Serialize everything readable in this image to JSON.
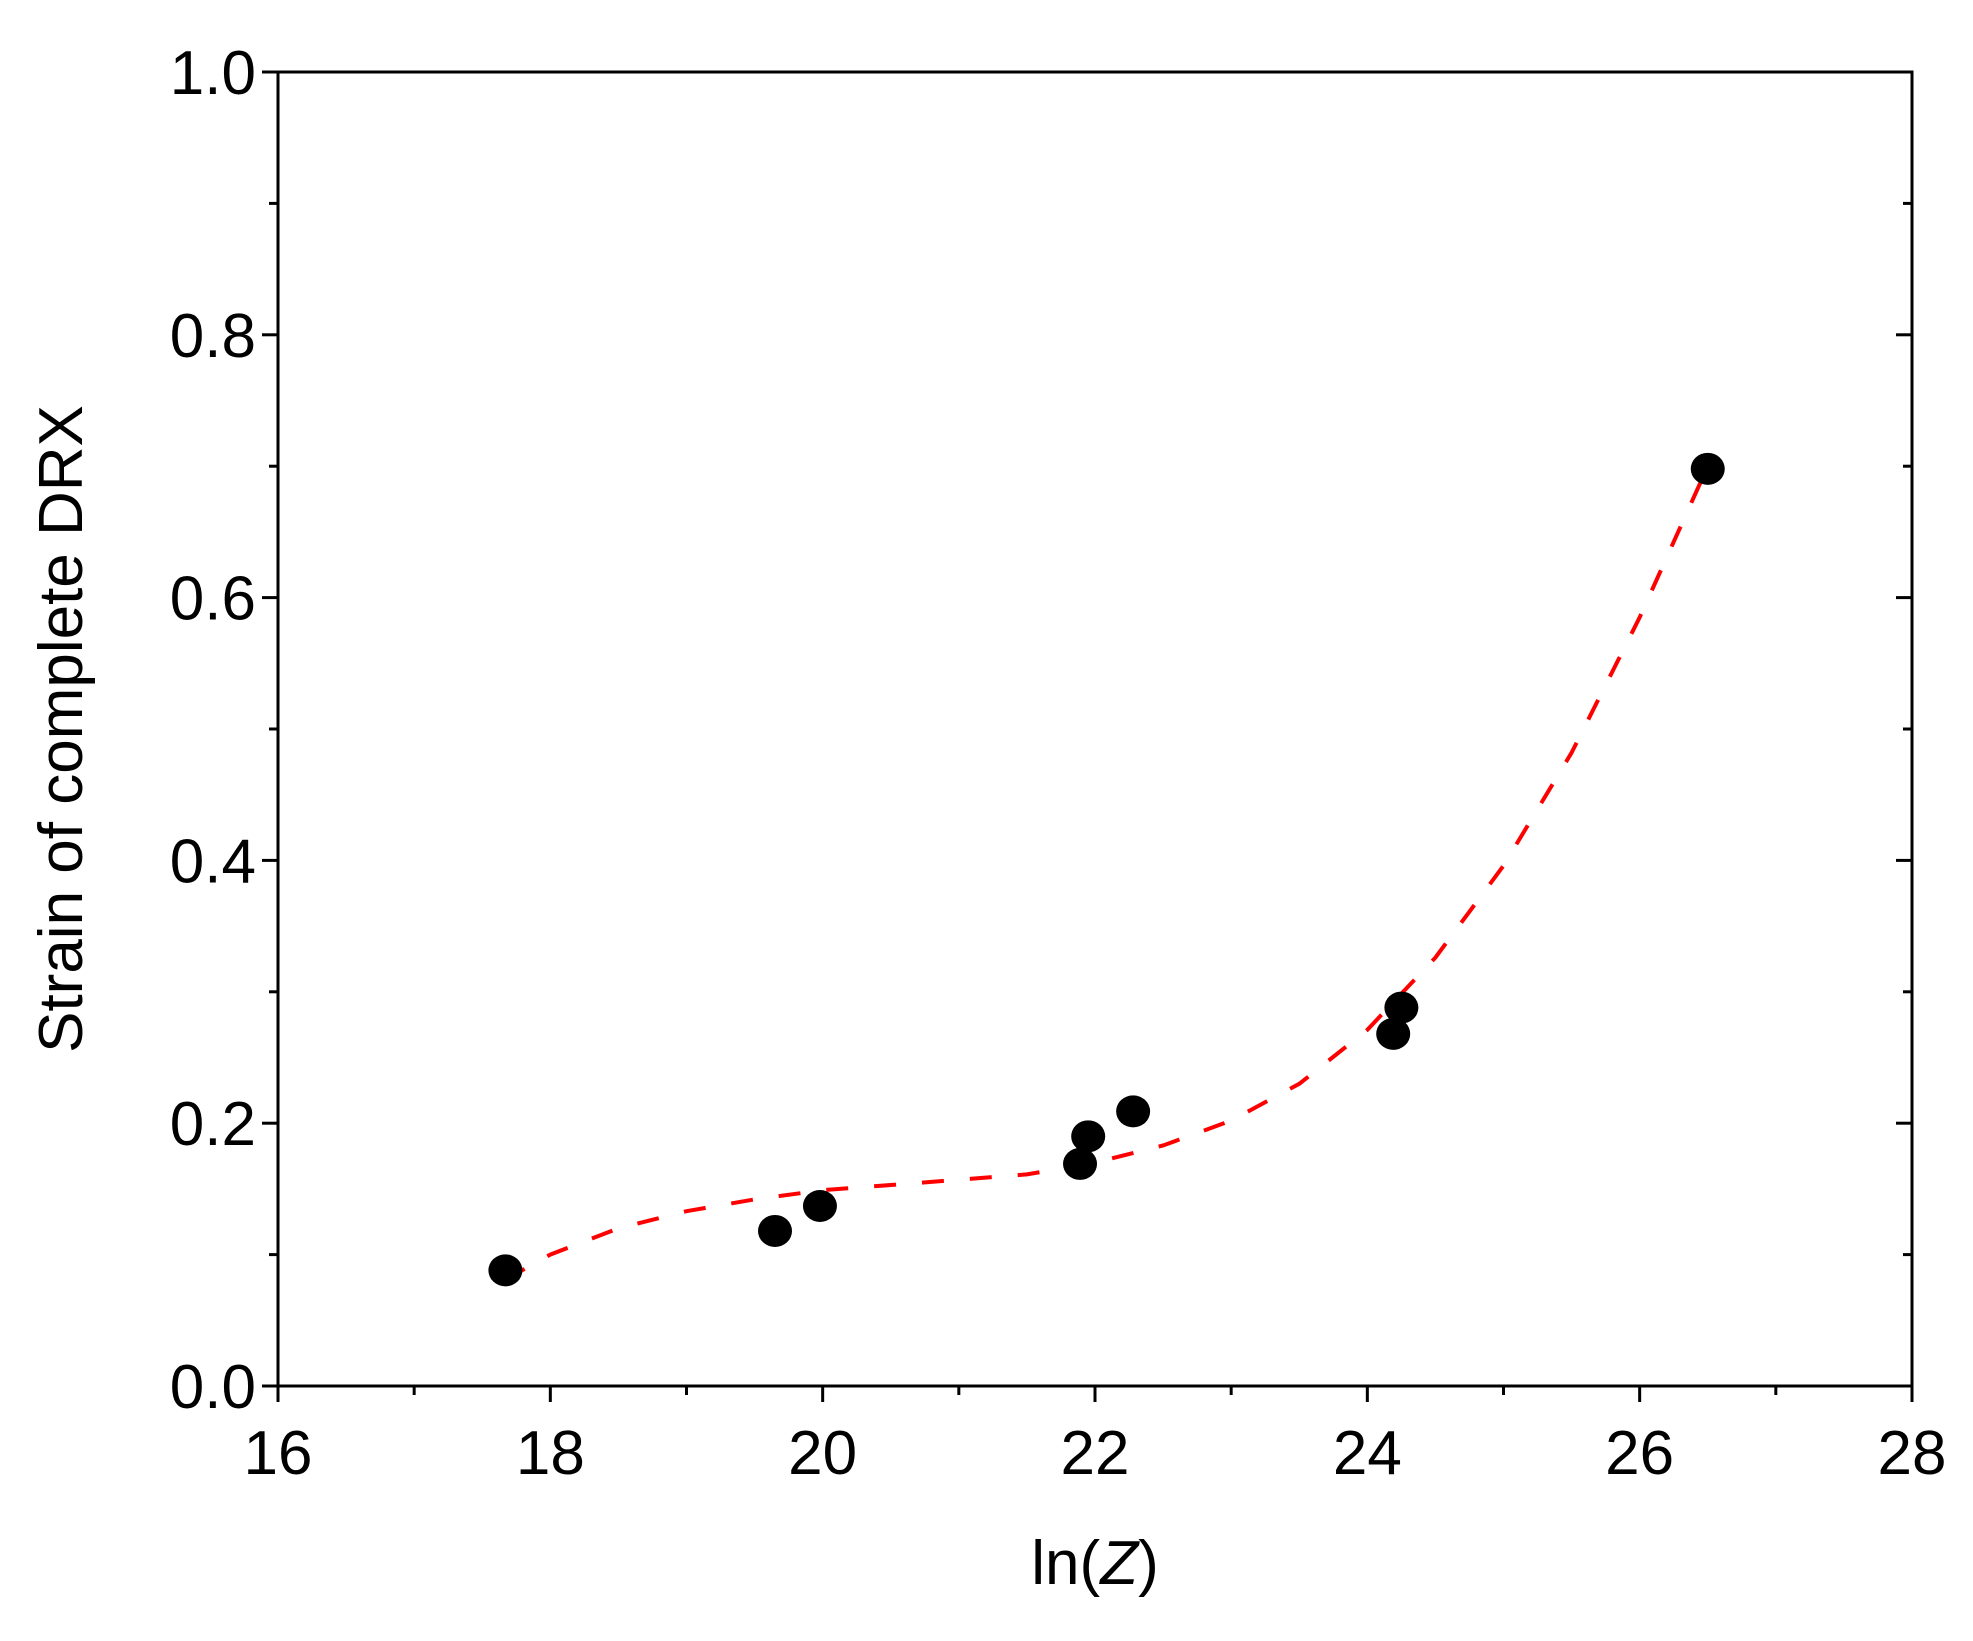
{
  "chart_data": {
    "type": "scatter",
    "title": "",
    "xlabel_prefix": "ln(",
    "xlabel_var": "Z",
    "xlabel_suffix": ")",
    "ylabel": "Strain of complete DRX",
    "xlim": [
      16,
      28
    ],
    "ylim": [
      0.0,
      1.0
    ],
    "x_major_ticks": [
      16,
      18,
      20,
      22,
      24,
      26,
      28
    ],
    "x_minor_ticks": [
      17,
      19,
      21,
      23,
      25,
      27
    ],
    "y_major_ticks": [
      0.0,
      0.2,
      0.4,
      0.6,
      0.8,
      1.0
    ],
    "y_minor_ticks": [
      0.1,
      0.3,
      0.5,
      0.7,
      0.9
    ],
    "x_tick_labels": [
      "16",
      "18",
      "20",
      "22",
      "24",
      "26",
      "28"
    ],
    "y_tick_labels": [
      "0.0",
      "0.2",
      "0.4",
      "0.6",
      "0.8",
      "1.0"
    ],
    "grid": false,
    "series": [
      {
        "kind": "points",
        "color": "#000000",
        "points": [
          {
            "x": 17.67,
            "y": 0.088
          },
          {
            "x": 19.65,
            "y": 0.118
          },
          {
            "x": 19.98,
            "y": 0.137
          },
          {
            "x": 21.89,
            "y": 0.169
          },
          {
            "x": 21.95,
            "y": 0.19
          },
          {
            "x": 22.28,
            "y": 0.209
          },
          {
            "x": 24.19,
            "y": 0.268
          },
          {
            "x": 24.25,
            "y": 0.288
          },
          {
            "x": 26.5,
            "y": 0.698
          }
        ]
      },
      {
        "kind": "fit-curve",
        "color": "#ff0000",
        "style": "dashed",
        "points": [
          {
            "x": 17.67,
            "y": 0.081
          },
          {
            "x": 18.0,
            "y": 0.1
          },
          {
            "x": 18.5,
            "y": 0.12
          },
          {
            "x": 19.0,
            "y": 0.133
          },
          {
            "x": 19.5,
            "y": 0.142
          },
          {
            "x": 20.0,
            "y": 0.149
          },
          {
            "x": 20.5,
            "y": 0.153
          },
          {
            "x": 21.0,
            "y": 0.157
          },
          {
            "x": 21.5,
            "y": 0.161
          },
          {
            "x": 22.0,
            "y": 0.17
          },
          {
            "x": 22.5,
            "y": 0.183
          },
          {
            "x": 23.0,
            "y": 0.202
          },
          {
            "x": 23.5,
            "y": 0.23
          },
          {
            "x": 24.0,
            "y": 0.271
          },
          {
            "x": 24.5,
            "y": 0.326
          },
          {
            "x": 25.0,
            "y": 0.396
          },
          {
            "x": 25.5,
            "y": 0.482
          },
          {
            "x": 26.0,
            "y": 0.585
          },
          {
            "x": 26.5,
            "y": 0.7
          }
        ]
      }
    ]
  }
}
